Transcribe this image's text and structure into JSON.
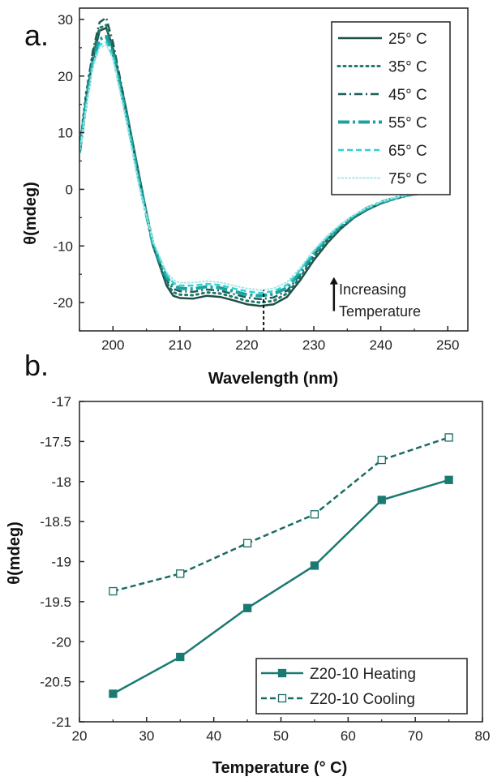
{
  "colors": {
    "t25": "#1f4f46",
    "t35": "#1f7a6c",
    "t45": "#1c5e58",
    "t55": "#1aa3a1",
    "t65": "#30d2d3",
    "t75": "#a8e6e6",
    "heating": "#1a7a72",
    "cooling": "#1a6c65",
    "axis": "#222222"
  },
  "chart_data": [
    {
      "type": "line",
      "panel_label": "a.",
      "xlabel": "Wavelength (nm)",
      "ylabel": "θ(mdeg)",
      "xlim": [
        195,
        253
      ],
      "ylim": [
        -25,
        32
      ],
      "xticks": [
        200,
        210,
        220,
        230,
        240,
        250
      ],
      "yticks": [
        -20,
        -10,
        0,
        10,
        20,
        30
      ],
      "legend_position": "top-right",
      "grid": false,
      "annotation": {
        "text_line1": "Increasing",
        "text_line2": "Temperature",
        "arrow_x": 233,
        "arrow_y_from": -21.5,
        "arrow_y_to": -15.5
      },
      "marker_line": {
        "x": 222.5,
        "y_from": -25,
        "y_to": -17.8
      },
      "series": [
        {
          "name": "25° C",
          "style": "solid",
          "color_key": "t25",
          "x": [
            195,
            196,
            197,
            198,
            199,
            200,
            202,
            204,
            206,
            208,
            209,
            210,
            212,
            214,
            216,
            218,
            220,
            222,
            224,
            226,
            228,
            230,
            232,
            234,
            236,
            238,
            240,
            242,
            244,
            246,
            248,
            250
          ],
          "y": [
            7,
            16,
            23,
            28,
            28.5,
            25,
            14,
            2,
            -10,
            -17,
            -18.8,
            -19.2,
            -19.3,
            -18.8,
            -19.0,
            -19.6,
            -20.3,
            -20.6,
            -20.3,
            -19.0,
            -16.0,
            -12.5,
            -9.5,
            -7.0,
            -5.0,
            -3.6,
            -2.5,
            -1.7,
            -1.1,
            -0.7,
            -0.4,
            -0.3
          ]
        },
        {
          "name": "35° C",
          "style": "dotted",
          "color_key": "t35",
          "x": [
            195,
            196,
            197,
            198,
            199,
            200,
            202,
            204,
            206,
            208,
            209,
            210,
            212,
            214,
            216,
            218,
            220,
            222,
            224,
            226,
            228,
            230,
            232,
            234,
            236,
            238,
            240,
            242,
            244,
            246,
            248,
            250
          ],
          "y": [
            7,
            17,
            24,
            28.5,
            29,
            24.5,
            13.5,
            1.5,
            -10,
            -16.5,
            -18.2,
            -18.6,
            -18.7,
            -18.2,
            -18.4,
            -19.0,
            -19.7,
            -20.0,
            -19.7,
            -18.4,
            -15.5,
            -12.0,
            -9.1,
            -6.8,
            -4.9,
            -3.5,
            -2.5,
            -1.7,
            -1.1,
            -0.7,
            -0.4,
            -0.3
          ]
        },
        {
          "name": "45° C",
          "style": "dashdot",
          "color_key": "t45",
          "x": [
            195,
            196,
            197,
            198,
            199,
            200,
            202,
            204,
            206,
            208,
            209,
            210,
            212,
            214,
            216,
            218,
            220,
            222,
            224,
            226,
            228,
            230,
            232,
            234,
            236,
            238,
            240,
            242,
            244,
            246,
            248,
            250
          ],
          "y": [
            6.5,
            16.5,
            24.5,
            29.5,
            30.3,
            26,
            14,
            1.5,
            -10,
            -16,
            -17.6,
            -18.0,
            -18.1,
            -17.7,
            -17.9,
            -18.5,
            -19.1,
            -19.4,
            -19.1,
            -17.9,
            -15.0,
            -11.6,
            -8.8,
            -6.6,
            -4.8,
            -3.4,
            -2.4,
            -1.6,
            -1.0,
            -0.7,
            -0.4,
            -0.3
          ]
        },
        {
          "name": "55° C",
          "style": "longdash",
          "color_key": "t55",
          "x": [
            195,
            196,
            197,
            198,
            199,
            200,
            202,
            204,
            206,
            208,
            209,
            210,
            212,
            214,
            216,
            218,
            220,
            222,
            224,
            226,
            228,
            230,
            232,
            234,
            236,
            238,
            240,
            242,
            244,
            246,
            248,
            250
          ],
          "y": [
            6.5,
            15.5,
            22.5,
            26.5,
            27,
            24,
            13,
            1,
            -9.8,
            -15.5,
            -17.0,
            -17.5,
            -17.6,
            -17.2,
            -17.4,
            -18.0,
            -18.6,
            -18.8,
            -18.5,
            -17.4,
            -14.6,
            -11.3,
            -8.6,
            -6.4,
            -4.7,
            -3.3,
            -2.3,
            -1.6,
            -1.0,
            -0.7,
            -0.4,
            -0.3
          ]
        },
        {
          "name": "65° C",
          "style": "dashed",
          "color_key": "t65",
          "x": [
            195,
            196,
            197,
            198,
            199,
            200,
            202,
            204,
            206,
            208,
            209,
            210,
            212,
            214,
            216,
            218,
            220,
            222,
            224,
            226,
            228,
            230,
            232,
            234,
            236,
            238,
            240,
            242,
            244,
            246,
            248,
            250
          ],
          "y": [
            6.5,
            15,
            22,
            25.5,
            26,
            23.5,
            12.5,
            0.5,
            -9.5,
            -15,
            -16.5,
            -17.0,
            -17.0,
            -16.7,
            -16.9,
            -17.5,
            -18.0,
            -18.3,
            -18.0,
            -16.9,
            -14.2,
            -11.0,
            -8.4,
            -6.3,
            -4.6,
            -3.3,
            -2.3,
            -1.6,
            -1.0,
            -0.7,
            -0.4,
            -0.3
          ]
        },
        {
          "name": "75° C",
          "style": "finedot",
          "color_key": "t75",
          "x": [
            195,
            196,
            197,
            198,
            199,
            200,
            202,
            204,
            206,
            208,
            209,
            210,
            212,
            214,
            216,
            218,
            220,
            222,
            224,
            226,
            228,
            230,
            232,
            234,
            236,
            238,
            240,
            242,
            244,
            246,
            248,
            250
          ],
          "y": [
            6.5,
            14.5,
            21.5,
            25,
            25.5,
            23,
            12,
            0,
            -9.2,
            -14.6,
            -16.0,
            -16.5,
            -16.5,
            -16.2,
            -16.4,
            -17.0,
            -17.5,
            -17.8,
            -17.5,
            -16.4,
            -13.8,
            -10.7,
            -8.2,
            -6.2,
            -4.5,
            -3.2,
            -2.2,
            -1.5,
            -1.0,
            -0.7,
            -0.4,
            -0.3
          ]
        }
      ]
    },
    {
      "type": "line",
      "panel_label": "b.",
      "xlabel": "Temperature (° C)",
      "ylabel": "θ(mdeg)",
      "xlim": [
        20,
        80
      ],
      "ylim": [
        -21,
        -17
      ],
      "xticks": [
        20,
        30,
        40,
        50,
        60,
        70,
        80
      ],
      "yticks": [
        -21,
        -20.5,
        -20,
        -19.5,
        -19,
        -18.5,
        -18,
        -17.5,
        -17
      ],
      "xtick_labels": [
        "20",
        "30",
        "40",
        "50",
        "60",
        "70",
        "80"
      ],
      "ytick_labels": [
        "-21",
        "-20.5",
        "-20",
        "-19.5",
        "-19",
        "-18.5",
        "-18",
        "-17.5",
        "-17"
      ],
      "legend_position": "bottom-right",
      "grid": false,
      "series": [
        {
          "name": "Z20-10 Heating",
          "style": "solid",
          "marker": "filled-square",
          "color_key": "heating",
          "x": [
            25,
            35,
            45,
            55,
            65,
            75
          ],
          "y": [
            -20.65,
            -20.19,
            -19.58,
            -19.05,
            -18.23,
            -17.98
          ]
        },
        {
          "name": "Z20-10 Cooling",
          "style": "dashed",
          "marker": "open-square",
          "color_key": "cooling",
          "x": [
            25,
            35,
            45,
            55,
            65,
            75
          ],
          "y": [
            -19.37,
            -19.15,
            -18.77,
            -18.41,
            -17.73,
            -17.45
          ]
        }
      ]
    }
  ]
}
